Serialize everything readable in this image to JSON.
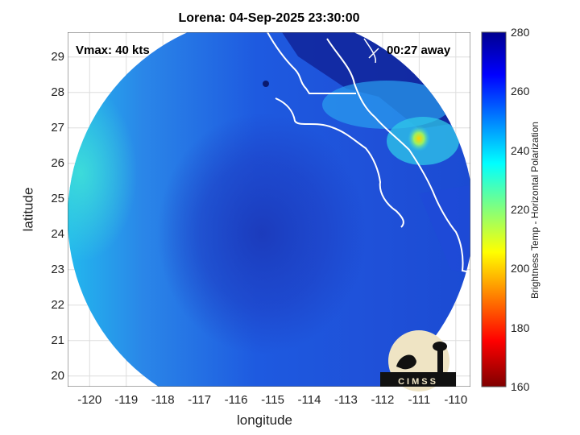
{
  "title": "Lorena: 04-Sep-2025 23:30:00",
  "vmax_label": "Vmax: 40 kts",
  "eta_label": "00:27 away",
  "xlabel": "longitude",
  "ylabel": "latitude",
  "colorbar_label": "Brightness Temp - Horizontal Polarization",
  "logo_text": "CIMSS",
  "x_ticks": [
    "-120",
    "-119",
    "-118",
    "-117",
    "-116",
    "-115",
    "-114",
    "-113",
    "-112",
    "-111",
    "-110"
  ],
  "y_ticks": [
    "29",
    "28",
    "27",
    "26",
    "25",
    "24",
    "23",
    "22",
    "21",
    "20"
  ],
  "colorbar_ticks": [
    "280",
    "260",
    "240",
    "220",
    "200",
    "180",
    "160"
  ],
  "chart_data": {
    "type": "heatmap",
    "title": "Lorena: 04-Sep-2025 23:30:00",
    "xlabel": "longitude",
    "ylabel": "latitude",
    "xlim": [
      -120.6,
      -109.6
    ],
    "ylim": [
      19.7,
      29.7
    ],
    "color_range": [
      160,
      280
    ],
    "colorbar_label": "Brightness Temp - Horizontal Polarization",
    "grid": true,
    "colormap": [
      "#7f0000",
      "#ff0000",
      "#ffff00",
      "#00ffff",
      "#0000ff",
      "#00008f"
    ],
    "storm_center_approx": {
      "lon": -115.7,
      "lat": 24.6
    },
    "annotations": [
      "Vmax: 40 kts",
      "00:27 away"
    ]
  }
}
